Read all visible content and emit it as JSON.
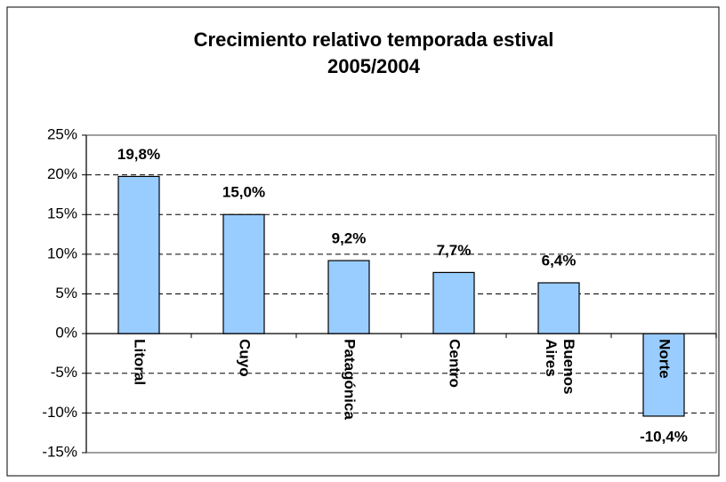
{
  "chart_data": {
    "type": "bar",
    "title": [
      "Crecimiento relativo temporada estival",
      "2005/2004"
    ],
    "categories": [
      "Litoral",
      "Cuyo",
      "Patagónica",
      "Centro",
      "Buenos Aires",
      "Norte"
    ],
    "values": [
      19.8,
      15.0,
      9.2,
      7.7,
      6.4,
      -10.4
    ],
    "value_labels": [
      "19,8%",
      "15,0%",
      "9,2%",
      "7,7%",
      "6,4%",
      "-10,4%"
    ],
    "color": "#99ccff",
    "ylim": [
      -15,
      25
    ],
    "yticks": [
      {
        "value": -15,
        "label": "-15%"
      },
      {
        "value": -10,
        "label": "-10%"
      },
      {
        "value": -5,
        "label": "-5%"
      },
      {
        "value": 0,
        "label": "0%"
      },
      {
        "value": 5,
        "label": "5%"
      },
      {
        "value": 10,
        "label": "10%"
      },
      {
        "value": 15,
        "label": "15%"
      },
      {
        "value": 20,
        "label": "20%"
      },
      {
        "value": 25,
        "label": "25%"
      }
    ],
    "grid": true
  }
}
